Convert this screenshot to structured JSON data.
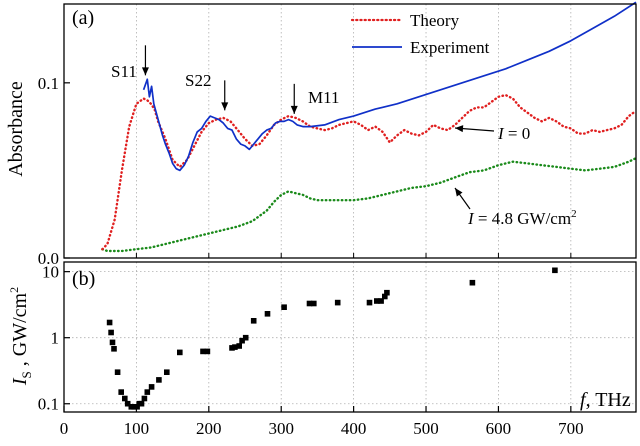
{
  "chart_data": [
    {
      "type": "line",
      "panel_label": "(a)",
      "title": "",
      "xlabel": "",
      "ylabel": "Absorbance",
      "xlim": [
        0,
        790
      ],
      "ylim": [
        0,
        0.145
      ],
      "yticks": [
        0.0,
        0.1
      ],
      "ytick_labels": [
        "0.0",
        "0.1"
      ],
      "grid": "vertical-dotted",
      "legend": {
        "placement": "top-right",
        "entries": [
          {
            "label": "Theory",
            "color": "#e02020",
            "style": "dotted"
          },
          {
            "label": "Experiment",
            "color": "#1030c8",
            "style": "solid"
          }
        ]
      },
      "series": [
        {
          "name": "Experiment",
          "color": "#1030c8",
          "style": "solid",
          "x": [
            110,
            115,
            118,
            121,
            124,
            128,
            132,
            136,
            140,
            145,
            150,
            155,
            160,
            166,
            172,
            178,
            184,
            190,
            196,
            202,
            208,
            214,
            220,
            226,
            232,
            238,
            244,
            250,
            256,
            262,
            268,
            274,
            280,
            286,
            292,
            298,
            304,
            310,
            316,
            322,
            330,
            340,
            360,
            380,
            400,
            430,
            460,
            490,
            520,
            550,
            580,
            610,
            640,
            670,
            700,
            730,
            760,
            790
          ],
          "y": [
            0.096,
            0.102,
            0.092,
            0.098,
            0.088,
            0.082,
            0.076,
            0.07,
            0.065,
            0.06,
            0.054,
            0.051,
            0.05,
            0.053,
            0.058,
            0.066,
            0.072,
            0.074,
            0.078,
            0.081,
            0.08,
            0.079,
            0.077,
            0.074,
            0.073,
            0.068,
            0.065,
            0.064,
            0.062,
            0.065,
            0.068,
            0.071,
            0.073,
            0.074,
            0.077,
            0.078,
            0.078,
            0.079,
            0.078,
            0.076,
            0.075,
            0.075,
            0.076,
            0.079,
            0.081,
            0.085,
            0.088,
            0.092,
            0.096,
            0.1,
            0.104,
            0.108,
            0.113,
            0.118,
            0.124,
            0.131,
            0.138,
            0.146
          ]
        },
        {
          "name": "Theory",
          "label": "I = 0",
          "color": "#e02020",
          "style": "dotted",
          "x": [
            53,
            60,
            70,
            80,
            90,
            100,
            110,
            115,
            120,
            125,
            130,
            140,
            150,
            160,
            170,
            180,
            190,
            200,
            210,
            220,
            230,
            240,
            250,
            260,
            270,
            280,
            290,
            300,
            310,
            320,
            330,
            340,
            350,
            360,
            370,
            380,
            390,
            400,
            410,
            420,
            430,
            440,
            450,
            460,
            470,
            480,
            490,
            500,
            510,
            520,
            530,
            540,
            550,
            560,
            570,
            580,
            590,
            600,
            610,
            620,
            630,
            640,
            650,
            660,
            670,
            680,
            690,
            700,
            710,
            720,
            730,
            740,
            750,
            760,
            770,
            780,
            790
          ],
          "y": [
            0.005,
            0.008,
            0.022,
            0.05,
            0.075,
            0.088,
            0.091,
            0.09,
            0.088,
            0.085,
            0.078,
            0.068,
            0.056,
            0.052,
            0.056,
            0.064,
            0.072,
            0.077,
            0.079,
            0.08,
            0.078,
            0.073,
            0.068,
            0.064,
            0.065,
            0.07,
            0.076,
            0.079,
            0.081,
            0.08,
            0.078,
            0.075,
            0.074,
            0.073,
            0.074,
            0.076,
            0.077,
            0.078,
            0.076,
            0.073,
            0.075,
            0.072,
            0.066,
            0.07,
            0.073,
            0.071,
            0.07,
            0.072,
            0.076,
            0.074,
            0.073,
            0.076,
            0.08,
            0.084,
            0.086,
            0.086,
            0.089,
            0.092,
            0.093,
            0.091,
            0.086,
            0.083,
            0.08,
            0.078,
            0.08,
            0.078,
            0.075,
            0.074,
            0.071,
            0.071,
            0.073,
            0.072,
            0.073,
            0.074,
            0.076,
            0.081,
            0.084
          ]
        },
        {
          "name": "Theory",
          "label": "I = 4.8 GW/cm2",
          "color": "#1a8a1a",
          "style": "dotted",
          "x": [
            53,
            60,
            70,
            80,
            100,
            120,
            140,
            160,
            180,
            200,
            220,
            240,
            260,
            280,
            290,
            300,
            310,
            320,
            330,
            340,
            350,
            370,
            400,
            420,
            440,
            460,
            480,
            500,
            520,
            540,
            560,
            580,
            600,
            620,
            640,
            660,
            680,
            700,
            720,
            740,
            760,
            780,
            790
          ],
          "y": [
            0.005,
            0.004,
            0.004,
            0.004,
            0.005,
            0.006,
            0.008,
            0.01,
            0.012,
            0.014,
            0.016,
            0.018,
            0.021,
            0.027,
            0.032,
            0.036,
            0.038,
            0.037,
            0.036,
            0.034,
            0.033,
            0.033,
            0.033,
            0.034,
            0.036,
            0.038,
            0.04,
            0.041,
            0.043,
            0.046,
            0.049,
            0.05,
            0.053,
            0.055,
            0.054,
            0.053,
            0.052,
            0.051,
            0.05,
            0.051,
            0.052,
            0.055,
            0.057
          ]
        }
      ],
      "annotations": [
        {
          "text": "S11",
          "x": 118,
          "y": 0.102
        },
        {
          "text": "S22",
          "x": 222,
          "y": 0.082
        },
        {
          "text": "M11",
          "x": 318,
          "y": 0.08
        }
      ],
      "curve_labels": {
        "theory_zero": {
          "I": "I",
          "rest": " = 0"
        },
        "theory_high": {
          "I": "I",
          "rest": " = 4.8 GW/cm",
          "sup": "2"
        }
      }
    },
    {
      "type": "scatter",
      "panel_label": "(b)",
      "title": "",
      "xlabel": "f,  THz",
      "xlabel_parts": {
        "var": "f",
        "rest": ",  THz"
      },
      "ylabel": "Is ,  GW/cm2",
      "ylabel_parts": {
        "var": "I",
        "sub": "S",
        "rest": " ,  GW/cm",
        "sup": "2"
      },
      "xlim": [
        0,
        790
      ],
      "xticks": [
        0,
        100,
        200,
        300,
        400,
        500,
        600,
        700
      ],
      "ylim": [
        0.075,
        14
      ],
      "y_scale": "log",
      "yticks": [
        0.1,
        1,
        10
      ],
      "ytick_labels": [
        "0.1",
        "1",
        "10"
      ],
      "grid": "both-dotted",
      "series": [
        {
          "name": "",
          "color": "#000000",
          "marker": "square",
          "x": [
            63,
            65,
            67,
            69,
            74,
            79,
            84,
            88,
            93,
            97,
            101,
            104,
            107,
            111,
            115,
            121,
            131,
            142,
            160,
            192,
            198,
            232,
            236,
            242,
            246,
            251,
            262,
            281,
            304,
            339,
            345,
            378,
            422,
            432,
            438,
            443,
            446,
            564,
            678
          ],
          "y": [
            1.7,
            1.2,
            0.85,
            0.68,
            0.3,
            0.15,
            0.12,
            0.1,
            0.09,
            0.09,
            0.09,
            0.1,
            0.1,
            0.12,
            0.15,
            0.18,
            0.23,
            0.3,
            0.6,
            0.62,
            0.62,
            0.7,
            0.72,
            0.75,
            0.9,
            1.0,
            1.8,
            2.3,
            2.9,
            3.3,
            3.3,
            3.4,
            3.4,
            3.6,
            3.6,
            4.2,
            4.8,
            6.8,
            10.5
          ]
        }
      ]
    }
  ]
}
